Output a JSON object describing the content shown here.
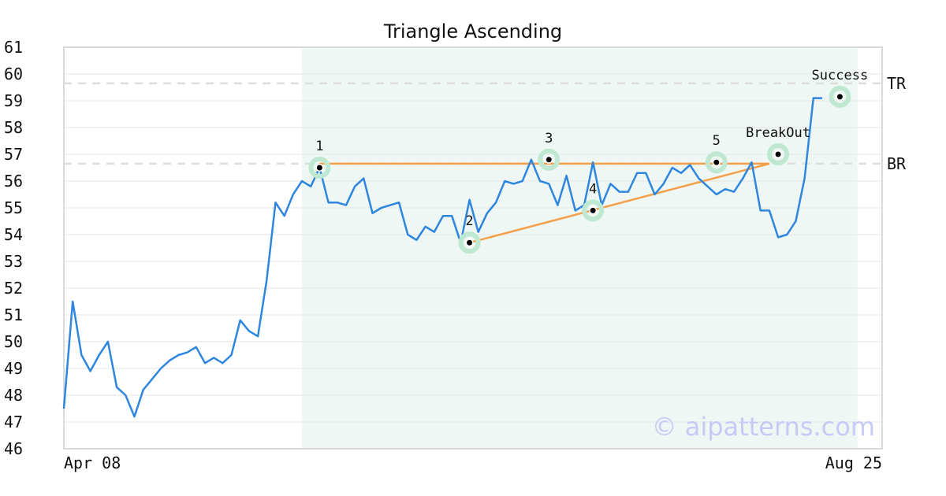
{
  "chart_data": {
    "type": "line",
    "title": "Triangle Ascending",
    "xlabel": "",
    "ylabel": "",
    "x_tick_labels": [
      "Apr 08",
      "Aug 25"
    ],
    "ylim": [
      46,
      61
    ],
    "y_ticks": [
      46,
      47,
      48,
      49,
      50,
      51,
      52,
      53,
      54,
      55,
      56,
      57,
      58,
      59,
      60,
      61
    ],
    "grid": "horizontal",
    "colors": {
      "price_line": "#2e86de",
      "trend_lines": "#f4a04a",
      "pattern_region": "#eef7f3",
      "marker_halo": "#bfe8d2",
      "level_lines": "#dddddd",
      "watermark": "#c9c9f7"
    },
    "series": [
      {
        "values": [
          47.5,
          51.5,
          49.5,
          48.9,
          49.5,
          50.0,
          48.3,
          48.0,
          47.2,
          48.2,
          48.6,
          49.0,
          49.3,
          49.5,
          49.6,
          49.8,
          49.2,
          49.4,
          49.2,
          49.5,
          50.8,
          50.4,
          50.2,
          52.3,
          55.2,
          54.7,
          55.5,
          56.0,
          55.8,
          56.5,
          55.2,
          55.2,
          55.1,
          55.8,
          56.1,
          54.8,
          55.0,
          55.1,
          55.2,
          54.0,
          53.8,
          54.3,
          54.1,
          54.7,
          54.7,
          53.7,
          55.3,
          54.1,
          54.8,
          55.2,
          56.0,
          55.9,
          56.0,
          56.8,
          56.0,
          55.9,
          55.1,
          56.2,
          54.9,
          55.1,
          56.7,
          55.1,
          55.9,
          55.6,
          55.6,
          56.3,
          56.3,
          55.5,
          55.9,
          56.5,
          56.3,
          56.6,
          56.1,
          55.8,
          55.5,
          55.7,
          55.6,
          56.1,
          56.7,
          54.9,
          54.9,
          53.9,
          54.0,
          54.5,
          56.1,
          59.1,
          59.1
        ]
      }
    ],
    "pattern_region": {
      "start_index": 27,
      "end_index": 90
    },
    "levels": [
      {
        "label": "TR",
        "value": 59.65
      },
      {
        "label": "BR",
        "value": 56.65
      }
    ],
    "trend_lines": [
      {
        "from": {
          "index": 29,
          "value": 56.65
        },
        "to": {
          "index": 80,
          "value": 56.65
        }
      },
      {
        "from": {
          "index": 46,
          "value": 53.7
        },
        "to": {
          "index": 80,
          "value": 56.65
        }
      }
    ],
    "markers": [
      {
        "label": "1",
        "index": 29,
        "value": 56.5
      },
      {
        "label": "2",
        "index": 46,
        "value": 53.7
      },
      {
        "label": "3",
        "index": 55,
        "value": 56.8
      },
      {
        "label": "4",
        "index": 60,
        "value": 54.9
      },
      {
        "label": "5",
        "index": 74,
        "value": 56.7
      },
      {
        "label": "BreakOut",
        "index": 81,
        "value": 57.0
      },
      {
        "label": "Success",
        "index": 88,
        "value": 59.15
      }
    ],
    "watermark": "© aipatterns.com"
  }
}
